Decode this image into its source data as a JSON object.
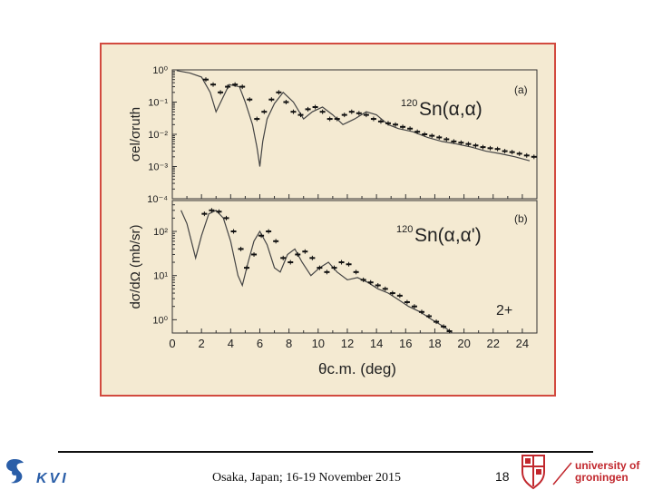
{
  "footer": {
    "text": "Osaka, Japan; 16-19 November 2015",
    "page_number": "18"
  },
  "logos": {
    "kvi": "KVI",
    "university_line1": "university of",
    "university_line2": "groningen"
  },
  "colors": {
    "frame": "#d24a3f",
    "panel_bg": "#f4ead2",
    "accent": "#c1272d"
  },
  "chart_data": [
    {
      "type": "line",
      "panel_label": "(a)",
      "reaction": {
        "mass": "120",
        "text": "Sn(α,α)"
      },
      "ylabel": "σel/σruth",
      "yscale": "log",
      "ylim": [
        0.0001,
        1
      ],
      "xlim": [
        0,
        25
      ],
      "ytick_labels": [
        "10⁰",
        "10⁻¹",
        "10⁻²",
        "10⁻³",
        "10⁻⁴"
      ],
      "series": [
        {
          "style": "curve",
          "x": [
            0.3,
            1.2,
            2.0,
            2.6,
            3.0,
            3.4,
            3.9,
            4.6,
            5.0,
            5.5,
            5.8,
            6.0,
            6.2,
            6.5,
            7.0,
            7.6,
            8.3,
            9.0,
            9.6,
            10.3,
            11.0,
            11.7,
            12.5,
            13.3,
            14.0,
            14.8,
            15.5,
            16.5,
            17.5,
            18.5,
            19.5,
            20.5,
            21.5,
            22.5,
            23.5,
            24.5
          ],
          "y": [
            0.95,
            0.8,
            0.6,
            0.2,
            0.05,
            0.12,
            0.35,
            0.3,
            0.1,
            0.02,
            0.004,
            0.001,
            0.006,
            0.03,
            0.09,
            0.2,
            0.1,
            0.03,
            0.05,
            0.07,
            0.04,
            0.02,
            0.03,
            0.05,
            0.04,
            0.02,
            0.015,
            0.012,
            0.008,
            0.006,
            0.005,
            0.004,
            0.003,
            0.0025,
            0.002,
            0.0015
          ]
        },
        {
          "style": "points",
          "x": [
            2.3,
            2.8,
            3.3,
            3.8,
            4.3,
            4.8,
            5.3,
            5.8,
            6.3,
            6.8,
            7.3,
            7.8,
            8.3,
            8.8,
            9.3,
            9.8,
            10.3,
            10.8,
            11.3,
            11.8,
            12.3,
            12.8,
            13.3,
            13.8,
            14.3,
            14.8,
            15.3,
            15.8,
            16.3,
            16.8,
            17.3,
            17.8,
            18.3,
            18.8,
            19.3,
            19.8,
            20.3,
            20.8,
            21.3,
            21.8,
            22.3,
            22.8,
            23.3,
            23.8,
            24.3,
            24.8
          ],
          "y": [
            0.5,
            0.35,
            0.2,
            0.3,
            0.35,
            0.3,
            0.12,
            0.03,
            0.05,
            0.12,
            0.2,
            0.1,
            0.05,
            0.04,
            0.06,
            0.07,
            0.05,
            0.03,
            0.03,
            0.04,
            0.05,
            0.045,
            0.04,
            0.03,
            0.025,
            0.022,
            0.02,
            0.017,
            0.015,
            0.012,
            0.01,
            0.009,
            0.008,
            0.007,
            0.006,
            0.0055,
            0.005,
            0.0045,
            0.004,
            0.0037,
            0.0035,
            0.003,
            0.0028,
            0.0025,
            0.0022,
            0.002
          ]
        }
      ]
    },
    {
      "type": "line",
      "panel_label": "(b)",
      "reaction": {
        "mass": "120",
        "text": "Sn(α,α')"
      },
      "state_label": "2+",
      "ylabel": "dσ/dΩ (mb/sr)",
      "xlabel": "θc.m. (deg)",
      "yscale": "log",
      "ylim": [
        0.5,
        500
      ],
      "xlim": [
        0,
        25
      ],
      "xticks": [
        0,
        2,
        4,
        6,
        8,
        10,
        12,
        14,
        16,
        18,
        20,
        22,
        24
      ],
      "ytick_labels": [
        "10²",
        "10¹",
        "10⁰"
      ],
      "series": [
        {
          "style": "curve",
          "x": [
            0.6,
            1.0,
            1.6,
            2.0,
            2.5,
            3.0,
            3.5,
            4.0,
            4.5,
            4.8,
            5.2,
            5.6,
            6.0,
            6.5,
            7.0,
            7.4,
            7.9,
            8.4,
            8.9,
            9.5,
            10.1,
            10.7,
            11.3,
            12.0,
            12.7,
            13.4,
            14.1,
            14.8,
            15.4,
            16.2,
            17.0,
            17.8,
            18.6,
            19.2
          ],
          "y": [
            300,
            150,
            25,
            80,
            250,
            300,
            200,
            60,
            10,
            6,
            20,
            60,
            100,
            50,
            15,
            12,
            30,
            40,
            20,
            10,
            15,
            20,
            12,
            8,
            9,
            7,
            5,
            4,
            3,
            2,
            1.5,
            1,
            0.7,
            0.5
          ]
        },
        {
          "style": "points",
          "x": [
            2.2,
            2.7,
            3.2,
            3.7,
            4.2,
            4.7,
            5.1,
            5.6,
            6.1,
            6.6,
            7.1,
            7.6,
            8.1,
            8.6,
            9.1,
            9.6,
            10.1,
            10.6,
            11.1,
            11.6,
            12.1,
            12.6,
            13.1,
            13.6,
            14.1,
            14.6,
            15.1,
            15.6,
            16.1,
            16.6,
            17.1,
            17.6,
            18.1,
            18.6,
            19.0
          ],
          "y": [
            250,
            300,
            280,
            200,
            100,
            40,
            15,
            30,
            80,
            100,
            60,
            25,
            20,
            30,
            35,
            25,
            15,
            12,
            15,
            20,
            18,
            12,
            8,
            7,
            6,
            5,
            4,
            3.5,
            2.5,
            2,
            1.5,
            1.2,
            0.9,
            0.7,
            0.55
          ]
        }
      ]
    }
  ]
}
